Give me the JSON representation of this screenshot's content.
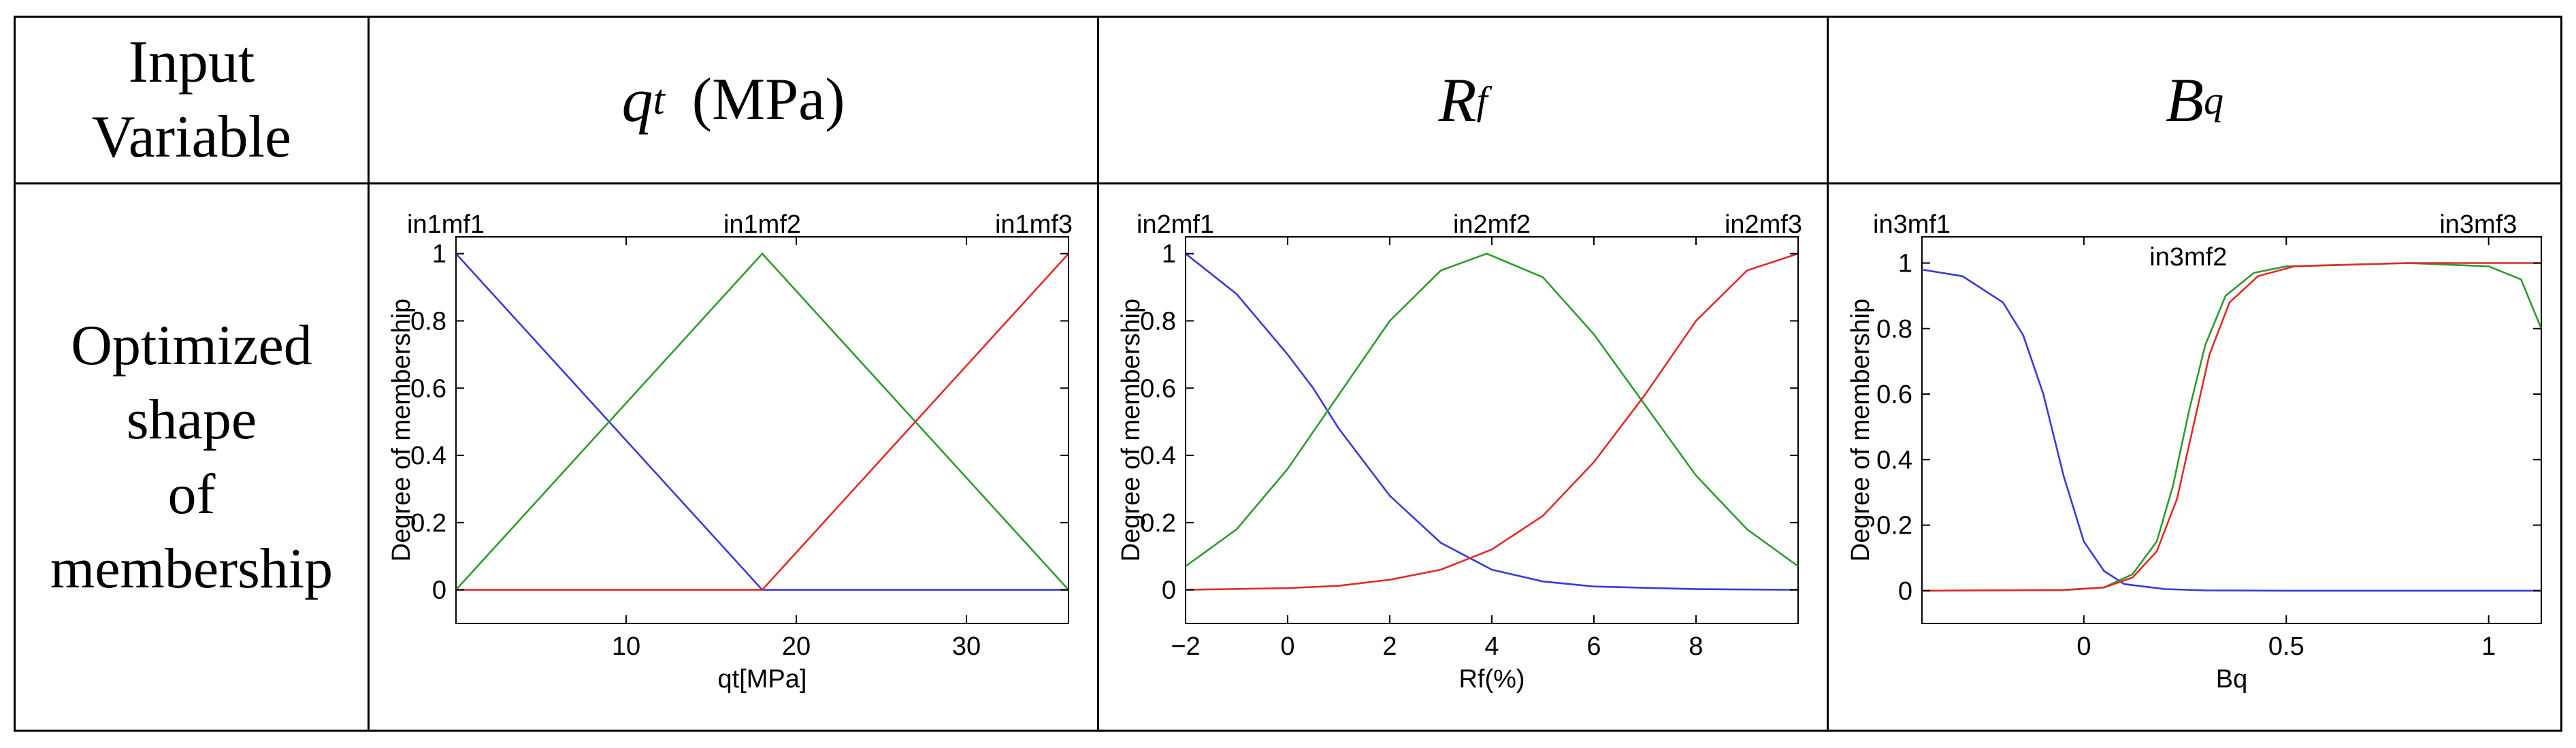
{
  "table": {
    "header": {
      "input_variable": "Input Variable",
      "input_variable_line1": "Input",
      "input_variable_line2": "Variable",
      "col1_symbol": "q",
      "col1_subscript": "t",
      "col1_unit": "(MPa)",
      "col2_symbol": "R",
      "col2_subscript": "f",
      "col3_symbol": "B",
      "col3_subscript": "q"
    },
    "row_label": "Optimized shape of membership",
    "row_label_lines": [
      "Optimized",
      "shape",
      "of",
      "membership"
    ]
  },
  "colors": {
    "mf1": "#3a3ad8",
    "mf2": "#2e9a2e",
    "mf3": "#e02a2a",
    "frame": "#000000"
  },
  "chart_data": [
    {
      "type": "line",
      "title": "",
      "xlabel": "qt[MPa]",
      "ylabel": "Degree of membership",
      "xlim": [
        0,
        36
      ],
      "ylim": [
        -0.1,
        1.05
      ],
      "xticks": [
        10,
        20,
        30
      ],
      "yticks": [
        0,
        0.2,
        0.4,
        0.6,
        0.8,
        1
      ],
      "mf_labels": [
        "in1mf1",
        "in1mf2",
        "in1mf3"
      ],
      "series": [
        {
          "name": "in1mf1",
          "color": "#3a3ad8",
          "x": [
            0,
            18,
            36
          ],
          "y": [
            1,
            0,
            0
          ]
        },
        {
          "name": "in1mf2",
          "color": "#2e9a2e",
          "x": [
            0,
            18,
            36
          ],
          "y": [
            0,
            1,
            0
          ]
        },
        {
          "name": "in1mf3",
          "color": "#e02a2a",
          "x": [
            0,
            18,
            36
          ],
          "y": [
            0,
            0,
            1
          ]
        }
      ]
    },
    {
      "type": "line",
      "title": "",
      "xlabel": "Rf(%)",
      "ylabel": "Degree of membership",
      "xlim": [
        -2,
        10
      ],
      "ylim": [
        -0.1,
        1.05
      ],
      "xticks": [
        -2,
        0,
        2,
        4,
        6,
        8
      ],
      "yticks": [
        0,
        0.2,
        0.4,
        0.6,
        0.8,
        1
      ],
      "mf_labels": [
        "in2mf1",
        "in2mf2",
        "in2mf3"
      ],
      "series": [
        {
          "name": "in2mf1",
          "color": "#3a3ad8",
          "x": [
            -2,
            -1,
            0,
            0.5,
            1,
            2,
            3,
            4,
            5,
            6,
            8,
            10
          ],
          "y": [
            1,
            0.88,
            0.7,
            0.6,
            0.48,
            0.28,
            0.14,
            0.06,
            0.025,
            0.01,
            0.002,
            0
          ]
        },
        {
          "name": "in2mf2",
          "color": "#2e9a2e",
          "x": [
            -2,
            -1,
            0,
            1,
            2,
            3,
            3.9,
            5,
            6,
            7,
            8,
            9,
            10
          ],
          "y": [
            0.07,
            0.18,
            0.36,
            0.58,
            0.8,
            0.95,
            1,
            0.93,
            0.76,
            0.55,
            0.34,
            0.18,
            0.07
          ]
        },
        {
          "name": "in2mf3",
          "color": "#e02a2a",
          "x": [
            -2,
            0,
            1,
            2,
            3,
            4,
            5,
            6,
            7,
            8,
            9,
            10
          ],
          "y": [
            0,
            0.005,
            0.012,
            0.03,
            0.06,
            0.12,
            0.22,
            0.38,
            0.58,
            0.8,
            0.95,
            1
          ]
        }
      ]
    },
    {
      "type": "line",
      "title": "",
      "xlabel": "Bq",
      "ylabel": "Degree of membership",
      "xlim": [
        -0.4,
        1.13
      ],
      "ylim": [
        -0.1,
        1.08
      ],
      "xticks": [
        0,
        0.5,
        1
      ],
      "yticks": [
        0,
        0.2,
        0.4,
        0.6,
        0.8,
        1
      ],
      "mf_labels": [
        "in3mf1",
        "in3mf2",
        "in3mf3"
      ],
      "series": [
        {
          "name": "in3mf1",
          "color": "#3a3ad8",
          "x": [
            -0.4,
            -0.3,
            -0.2,
            -0.15,
            -0.1,
            -0.05,
            0,
            0.05,
            0.1,
            0.2,
            0.3,
            0.5,
            1.13
          ],
          "y": [
            0.98,
            0.96,
            0.88,
            0.78,
            0.6,
            0.35,
            0.15,
            0.06,
            0.02,
            0.005,
            0.001,
            0,
            0
          ]
        },
        {
          "name": "in3mf2",
          "color": "#2e9a2e",
          "x": [
            -0.4,
            -0.05,
            0.05,
            0.12,
            0.18,
            0.22,
            0.26,
            0.3,
            0.35,
            0.42,
            0.5,
            0.8,
            1.0,
            1.08,
            1.13
          ],
          "y": [
            0,
            0.002,
            0.01,
            0.05,
            0.15,
            0.32,
            0.55,
            0.75,
            0.9,
            0.97,
            0.99,
            1,
            0.99,
            0.95,
            0.8
          ]
        },
        {
          "name": "in3mf3",
          "color": "#e02a2a",
          "x": [
            -0.4,
            -0.05,
            0.05,
            0.12,
            0.18,
            0.23,
            0.27,
            0.31,
            0.36,
            0.43,
            0.52,
            0.8,
            1.13
          ],
          "y": [
            0,
            0.002,
            0.01,
            0.04,
            0.12,
            0.28,
            0.5,
            0.72,
            0.88,
            0.96,
            0.99,
            1,
            1
          ]
        }
      ]
    }
  ]
}
